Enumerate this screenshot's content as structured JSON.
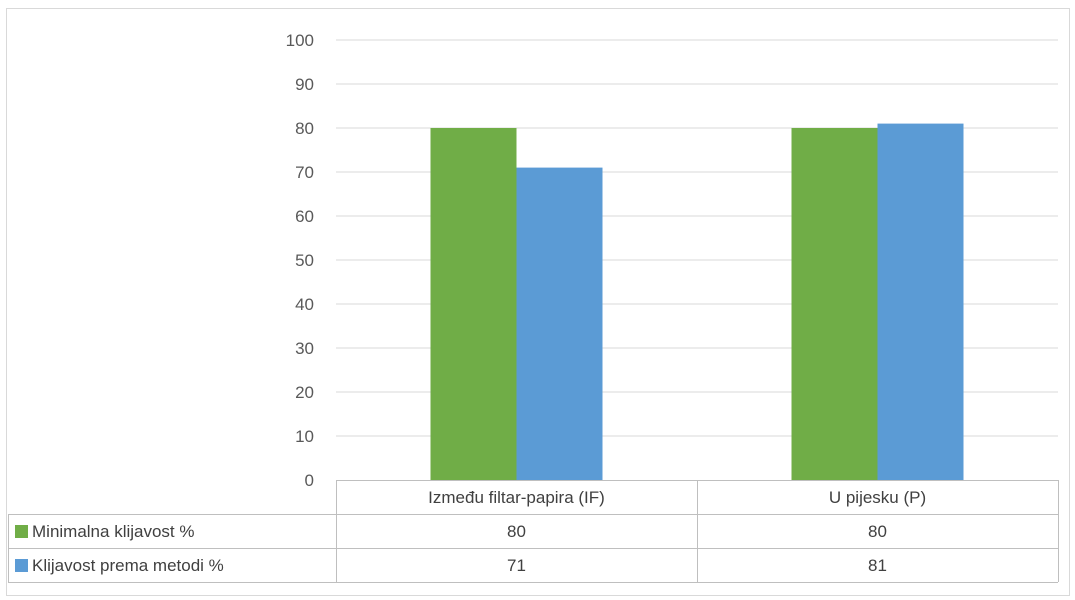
{
  "chart_data": {
    "type": "bar",
    "categories": [
      "Između filtar-papira (IF)",
      "U pijesku (P)"
    ],
    "series": [
      {
        "name": "Minimalna klijavost %",
        "values": [
          80,
          80
        ],
        "color": "#70ad47"
      },
      {
        "name": "Klijavost prema metodi %",
        "values": [
          71,
          81
        ],
        "color": "#5b9bd5"
      }
    ],
    "ylim": [
      0,
      100
    ],
    "yticks": [
      0,
      10,
      20,
      30,
      40,
      50,
      60,
      70,
      80,
      90,
      100
    ],
    "grid": true,
    "legend": "data-table",
    "title": "",
    "xlabel": "",
    "ylabel": ""
  }
}
